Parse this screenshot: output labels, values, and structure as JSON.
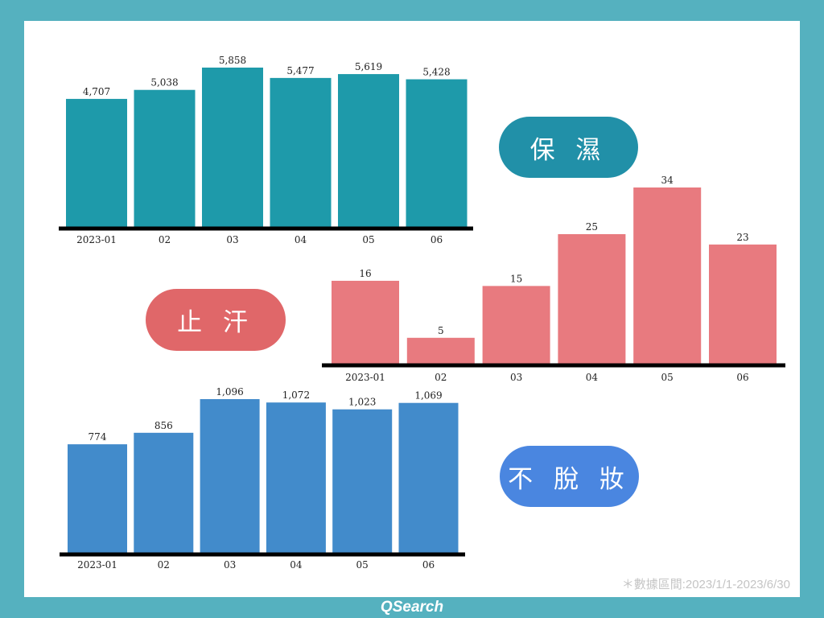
{
  "labels": {
    "moisturizing": "保 濕",
    "antiperspirant": "止 汗",
    "longwear": "不 脫 妝"
  },
  "footnote": "＊數據區間:2023/1/1-2023/6/30",
  "brand": "QSearch",
  "colors": {
    "background": "#55b1bf",
    "moisturizing": "#1e9aaa",
    "antiperspirant": "#e87a7f",
    "longwear": "#428bcb",
    "moisturizing_pill": "#2190a8",
    "antiperspirant_pill": "#e06769",
    "longwear_pill": "#4a86e0"
  },
  "chart_data": [
    {
      "type": "bar",
      "name": "保濕",
      "categories": [
        "2023-01",
        "02",
        "03",
        "04",
        "05",
        "06"
      ],
      "values": [
        4707,
        5038,
        5858,
        5477,
        5619,
        5428
      ],
      "value_labels": [
        "4,707",
        "5,038",
        "5,858",
        "5,477",
        "5,619",
        "5,428"
      ],
      "ylim": [
        0,
        5858
      ],
      "color": "#1e9aaa"
    },
    {
      "type": "bar",
      "name": "止汗",
      "categories": [
        "2023-01",
        "02",
        "03",
        "04",
        "05",
        "06"
      ],
      "values": [
        16,
        5,
        15,
        25,
        34,
        23
      ],
      "value_labels": [
        "16",
        "5",
        "15",
        "25",
        "34",
        "23"
      ],
      "ylim": [
        0,
        34
      ],
      "color": "#e87a7f"
    },
    {
      "type": "bar",
      "name": "不脫妝",
      "categories": [
        "2023-01",
        "02",
        "03",
        "04",
        "05",
        "06"
      ],
      "values": [
        774,
        856,
        1096,
        1072,
        1023,
        1069
      ],
      "value_labels": [
        "774",
        "856",
        "1,096",
        "1,072",
        "1,023",
        "1,069"
      ],
      "ylim": [
        0,
        1096
      ],
      "color": "#428bcb"
    }
  ]
}
